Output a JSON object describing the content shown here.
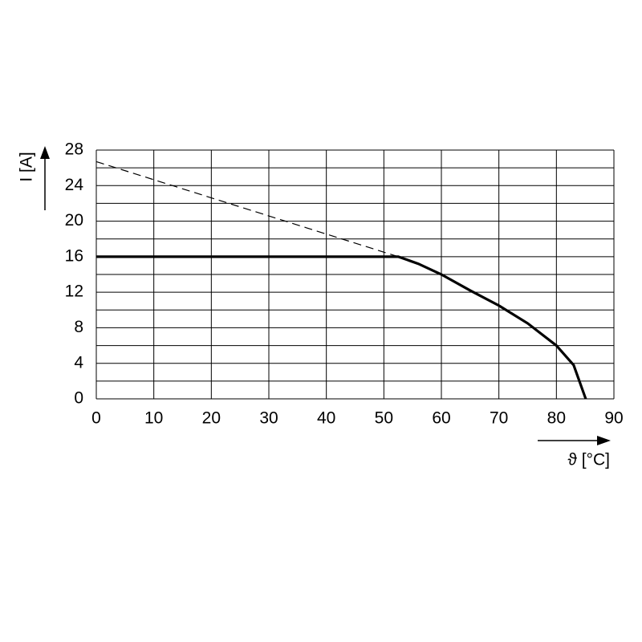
{
  "chart_data": {
    "type": "line",
    "y_label": "I [A]",
    "x_label": "ϑ [°C]",
    "xlim": [
      0,
      90
    ],
    "xticks": [
      0,
      10,
      20,
      30,
      40,
      50,
      60,
      70,
      80,
      90
    ],
    "ylim": [
      0,
      28
    ],
    "yticks": [
      0,
      4,
      8,
      12,
      16,
      20,
      24,
      28
    ],
    "minor_yticks": [
      2,
      6,
      10,
      14,
      18,
      22,
      26
    ],
    "grid": true,
    "series": [
      {
        "color": "#000000",
        "style": "solid",
        "x": [
          0,
          52.5,
          56,
          60,
          65,
          70,
          75,
          80,
          83,
          85.1
        ],
        "values": [
          16,
          16,
          15.2,
          14,
          12.2,
          10.5,
          8.5,
          6,
          3.8,
          0
        ]
      },
      {
        "color": "#000000",
        "style": "dashed",
        "x": [
          0,
          52.5
        ],
        "values": [
          26.7,
          16
        ]
      }
    ]
  }
}
